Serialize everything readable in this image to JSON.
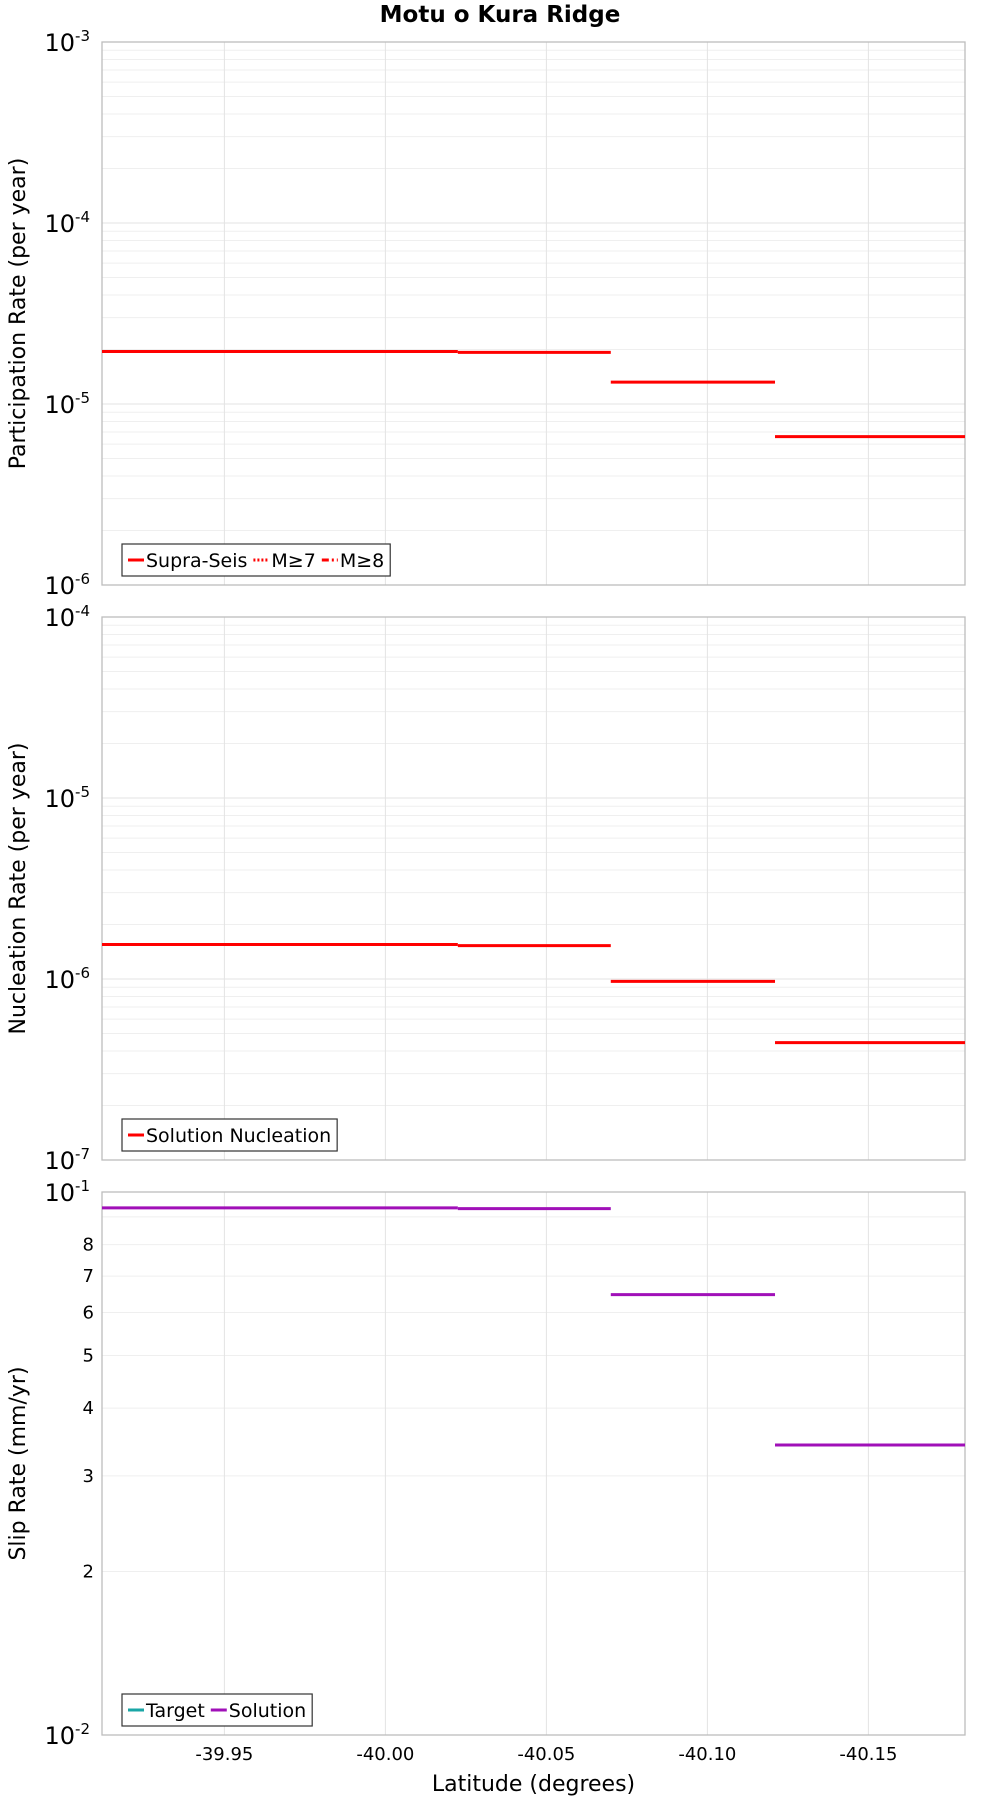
{
  "figure_title": "Motu o Kura Ridge",
  "chart_data": [
    {
      "type": "line",
      "title": "Motu o Kura Ridge",
      "xlabel": "Latitude (degrees)",
      "ylabel": "Participation Rate (per year)",
      "yscale": "log",
      "ylim": [
        1e-06,
        0.001
      ],
      "xlim": [
        -39.912,
        -40.18
      ],
      "yticks": [
        {
          "base": "10",
          "exp": "-3",
          "value": 0.001
        },
        {
          "base": "10",
          "exp": "-4",
          "value": 0.0001
        },
        {
          "base": "10",
          "exp": "-5",
          "value": 1e-05
        },
        {
          "base": "10",
          "exp": "-6",
          "value": 1e-06
        }
      ],
      "legend": [
        {
          "label": "Supra-Seis",
          "color": "#ff0000",
          "dash": "solid"
        },
        {
          "label": "M≥7",
          "color": "#ff0000",
          "dash": "dotted"
        },
        {
          "label": "M≥8",
          "color": "#ff0000",
          "dash": "dashdot"
        }
      ],
      "series": [
        {
          "name": "Supra-Seis",
          "color": "#ff0000",
          "segments": [
            {
              "x0": -39.912,
              "x1": -40.0225,
              "y": 1.95e-05
            },
            {
              "x0": -40.0225,
              "x1": -40.07,
              "y": 1.93e-05
            },
            {
              "x0": -40.07,
              "x1": -40.121,
              "y": 1.32e-05
            },
            {
              "x0": -40.121,
              "x1": -40.18,
              "y": 6.6e-06
            }
          ]
        }
      ]
    },
    {
      "type": "line",
      "xlabel": "Latitude (degrees)",
      "ylabel": "Nucleation Rate (per year)",
      "yscale": "log",
      "ylim": [
        1e-07,
        0.0001
      ],
      "xlim": [
        -39.912,
        -40.18
      ],
      "yticks": [
        {
          "base": "10",
          "exp": "-4",
          "value": 0.0001
        },
        {
          "base": "10",
          "exp": "-5",
          "value": 1e-05
        },
        {
          "base": "10",
          "exp": "-6",
          "value": 1e-06
        },
        {
          "base": "10",
          "exp": "-7",
          "value": 1e-07
        }
      ],
      "legend": [
        {
          "label": "Solution Nucleation",
          "color": "#ff0000",
          "dash": "solid"
        }
      ],
      "series": [
        {
          "name": "Solution Nucleation",
          "color": "#ff0000",
          "segments": [
            {
              "x0": -39.912,
              "x1": -40.0225,
              "y": 1.55e-06
            },
            {
              "x0": -40.0225,
              "x1": -40.07,
              "y": 1.53e-06
            },
            {
              "x0": -40.07,
              "x1": -40.121,
              "y": 9.7e-07
            },
            {
              "x0": -40.121,
              "x1": -40.18,
              "y": 4.45e-07
            }
          ]
        }
      ]
    },
    {
      "type": "line",
      "xlabel": "Latitude (degrees)",
      "ylabel": "Slip Rate (mm/yr)",
      "yscale": "log",
      "ylim": [
        0.01,
        0.1
      ],
      "xlim": [
        -39.912,
        -40.18
      ],
      "xticks": [
        {
          "label": "-39.95",
          "value": -39.95
        },
        {
          "label": "-40.00",
          "value": -40.0
        },
        {
          "label": "-40.05",
          "value": -40.05
        },
        {
          "label": "-40.10",
          "value": -40.1
        },
        {
          "label": "-40.15",
          "value": -40.15
        }
      ],
      "yticks": [
        {
          "base": "10",
          "exp": "-1",
          "value": 0.1
        },
        {
          "base": "10",
          "exp": "-2",
          "value": 0.01
        }
      ],
      "yminor_labels": [
        {
          "label": "8",
          "value": 0.08
        },
        {
          "label": "7",
          "value": 0.07
        },
        {
          "label": "6",
          "value": 0.06
        },
        {
          "label": "5",
          "value": 0.05
        },
        {
          "label": "4",
          "value": 0.04
        },
        {
          "label": "3",
          "value": 0.03
        },
        {
          "label": "2",
          "value": 0.02
        }
      ],
      "legend": [
        {
          "label": "Target",
          "color": "#1aa6a6",
          "dash": "solid"
        },
        {
          "label": "Solution",
          "color": "#a010b8",
          "dash": "solid"
        }
      ],
      "series": [
        {
          "name": "Solution",
          "color": "#a010b8",
          "segments": [
            {
              "x0": -39.912,
              "x1": -40.0225,
              "y": 0.0935
            },
            {
              "x0": -40.0225,
              "x1": -40.07,
              "y": 0.0932
            },
            {
              "x0": -40.07,
              "x1": -40.121,
              "y": 0.0647
            },
            {
              "x0": -40.121,
              "x1": -40.18,
              "y": 0.0342
            }
          ]
        }
      ]
    }
  ]
}
